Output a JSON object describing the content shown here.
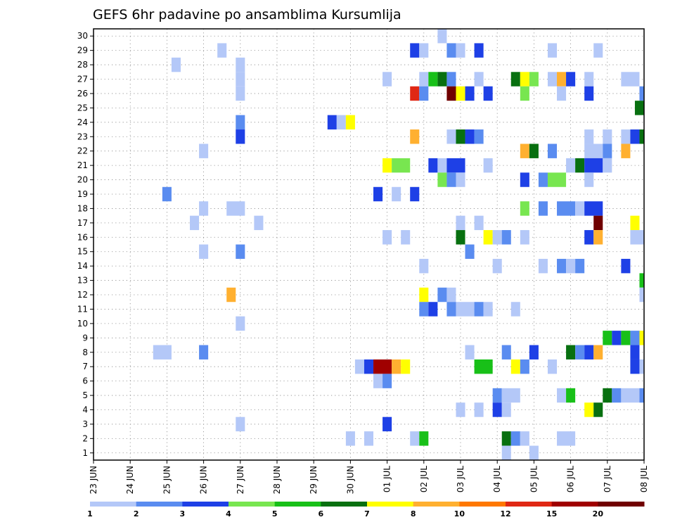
{
  "chart_data": {
    "type": "heatmap",
    "title": "GEFS 6hr padavine po ansamblima Kursumlija",
    "xlabel": "",
    "ylabel": "",
    "x_tick_labels": [
      "23 JUN",
      "24 JUN",
      "25 JUN",
      "26 JUN",
      "27 JUN",
      "28 JUN",
      "29 JUN",
      "30 JUN",
      "01 JUL",
      "02 JUL",
      "03 JUL",
      "04 JUL",
      "05 JUL",
      "06 JUL",
      "07 JUL",
      "08 JUL"
    ],
    "x_unit": "6-hour step from 23 JUN 00Z",
    "xlim": [
      0,
      60
    ],
    "y_tick_labels": [
      "1",
      "2",
      "3",
      "4",
      "5",
      "6",
      "7",
      "8",
      "9",
      "10",
      "11",
      "12",
      "13",
      "14",
      "15",
      "16",
      "17",
      "18",
      "19",
      "20",
      "21",
      "22",
      "23",
      "24",
      "25",
      "26",
      "27",
      "28",
      "29",
      "30"
    ],
    "ylim": [
      0.5,
      30.5
    ],
    "grid": true,
    "legend": {
      "position": "bottom",
      "boundaries": [
        "1",
        "2",
        "3",
        "4",
        "5",
        "6",
        "7",
        "8",
        "10",
        "12",
        "15",
        "20"
      ],
      "colors": [
        "#b4c8f8",
        "#5a8cf0",
        "#1e40e6",
        "#78e650",
        "#18c018",
        "#087010",
        "#ffff00",
        "#ffb030",
        "#ff7800",
        "#e02814",
        "#a00000",
        "#700000"
      ]
    },
    "cells_format": "[member, step_start, step_end, class]; step index counts 6-hour intervals from 23 JUN 00Z; class is the legend color index (0 = 1-2 mm ... 11 = >20 mm)",
    "cells": [
      [
        30,
        37.5,
        38.5,
        0
      ],
      [
        29,
        13.5,
        14.5,
        0
      ],
      [
        29,
        34.5,
        35.5,
        2
      ],
      [
        29,
        35.5,
        36.5,
        0
      ],
      [
        29,
        38.5,
        39.5,
        1
      ],
      [
        29,
        39.5,
        40.5,
        0
      ],
      [
        29,
        41.5,
        42.5,
        2
      ],
      [
        29,
        49.5,
        50.5,
        0
      ],
      [
        29,
        54.5,
        55.5,
        0
      ],
      [
        28,
        8.5,
        9.5,
        0
      ],
      [
        28,
        15.5,
        16.5,
        0
      ],
      [
        27,
        15.5,
        16.5,
        0
      ],
      [
        27,
        31.5,
        32.5,
        0
      ],
      [
        27,
        35.5,
        36.5,
        0
      ],
      [
        27,
        36.5,
        37.5,
        4
      ],
      [
        27,
        37.5,
        38.5,
        5
      ],
      [
        27,
        38.5,
        39.5,
        1
      ],
      [
        27,
        41.5,
        42.5,
        0
      ],
      [
        27,
        45.5,
        46.5,
        5
      ],
      [
        27,
        46.5,
        47.5,
        6
      ],
      [
        27,
        47.5,
        48.5,
        3
      ],
      [
        27,
        49.5,
        50.5,
        0
      ],
      [
        27,
        50.5,
        51.5,
        7
      ],
      [
        27,
        51.5,
        52.5,
        2
      ],
      [
        27,
        53.5,
        54.5,
        0
      ],
      [
        27,
        57.5,
        59.5,
        0
      ],
      [
        26,
        15.5,
        16.5,
        0
      ],
      [
        26,
        34.5,
        35.5,
        9
      ],
      [
        26,
        35.5,
        36.5,
        1
      ],
      [
        26,
        38.5,
        39.5,
        11
      ],
      [
        26,
        39.5,
        40.5,
        6
      ],
      [
        26,
        40.5,
        41.5,
        2
      ],
      [
        26,
        42.5,
        43.5,
        2
      ],
      [
        26,
        46.5,
        47.5,
        3
      ],
      [
        26,
        50.5,
        51.5,
        0
      ],
      [
        26,
        53.5,
        54.5,
        2
      ],
      [
        26,
        59.5,
        60,
        1
      ],
      [
        25,
        59,
        60,
        5
      ],
      [
        24,
        15.5,
        16.5,
        1
      ],
      [
        24,
        25.5,
        26.5,
        2
      ],
      [
        24,
        26.5,
        27.5,
        0
      ],
      [
        24,
        27.5,
        28.5,
        6
      ],
      [
        23,
        15.5,
        16.5,
        2
      ],
      [
        23,
        34.5,
        35.5,
        7
      ],
      [
        23,
        38.5,
        39.5,
        0
      ],
      [
        23,
        39.5,
        40.5,
        5
      ],
      [
        23,
        40.5,
        41.5,
        2
      ],
      [
        23,
        41.5,
        42.5,
        1
      ],
      [
        23,
        53.5,
        54.5,
        0
      ],
      [
        23,
        55.5,
        56.5,
        0
      ],
      [
        23,
        57.5,
        58.5,
        0
      ],
      [
        23,
        58.5,
        59.5,
        2
      ],
      [
        23,
        59.5,
        60,
        5
      ],
      [
        22,
        11.5,
        12.5,
        0
      ],
      [
        22,
        46.5,
        47.5,
        7
      ],
      [
        22,
        47.5,
        48.5,
        5
      ],
      [
        22,
        49.5,
        50.5,
        1
      ],
      [
        22,
        53.5,
        55.5,
        0
      ],
      [
        22,
        55.5,
        56.5,
        1
      ],
      [
        22,
        57.5,
        58.5,
        7
      ],
      [
        21,
        31.5,
        32.5,
        6
      ],
      [
        21,
        32.5,
        34.5,
        3
      ],
      [
        21,
        36.5,
        37.5,
        2
      ],
      [
        21,
        37.5,
        38.5,
        0
      ],
      [
        21,
        38.5,
        40.5,
        2
      ],
      [
        21,
        42.5,
        43.5,
        0
      ],
      [
        21,
        51.5,
        52.5,
        0
      ],
      [
        21,
        52.5,
        53.5,
        5
      ],
      [
        21,
        53.5,
        55.5,
        2
      ],
      [
        21,
        55.5,
        56.5,
        0
      ],
      [
        20,
        37.5,
        38.5,
        3
      ],
      [
        20,
        38.5,
        39.5,
        1
      ],
      [
        20,
        39.5,
        40.5,
        0
      ],
      [
        20,
        46.5,
        47.5,
        2
      ],
      [
        20,
        48.5,
        49.5,
        1
      ],
      [
        20,
        49.5,
        51.5,
        3
      ],
      [
        20,
        53.5,
        54.5,
        0
      ],
      [
        19,
        7.5,
        8.5,
        1
      ],
      [
        19,
        30.5,
        31.5,
        2
      ],
      [
        19,
        32.5,
        33.5,
        0
      ],
      [
        19,
        34.5,
        35.5,
        2
      ],
      [
        18,
        11.5,
        12.5,
        0
      ],
      [
        18,
        14.5,
        16.5,
        0
      ],
      [
        18,
        46.5,
        47.5,
        3
      ],
      [
        18,
        48.5,
        49.5,
        1
      ],
      [
        18,
        50.5,
        52.5,
        1
      ],
      [
        18,
        52.5,
        53.5,
        0
      ],
      [
        18,
        53.5,
        55.5,
        2
      ],
      [
        17,
        10.5,
        11.5,
        0
      ],
      [
        17,
        17.5,
        18.5,
        0
      ],
      [
        17,
        39.5,
        40.5,
        0
      ],
      [
        17,
        41.5,
        42.5,
        0
      ],
      [
        17,
        54.5,
        55.5,
        11
      ],
      [
        17,
        58.5,
        59.5,
        6
      ],
      [
        16,
        31.5,
        32.5,
        0
      ],
      [
        16,
        33.5,
        34.5,
        0
      ],
      [
        16,
        39.5,
        40.5,
        5
      ],
      [
        16,
        42.5,
        43.5,
        6
      ],
      [
        16,
        43.5,
        44.5,
        0
      ],
      [
        16,
        44.5,
        45.5,
        1
      ],
      [
        16,
        46.5,
        47.5,
        0
      ],
      [
        16,
        53.5,
        54.5,
        2
      ],
      [
        16,
        54.5,
        55.5,
        7
      ],
      [
        16,
        58.5,
        60,
        0
      ],
      [
        15,
        11.5,
        12.5,
        0
      ],
      [
        15,
        15.5,
        16.5,
        1
      ],
      [
        15,
        40.5,
        41.5,
        1
      ],
      [
        14,
        35.5,
        36.5,
        0
      ],
      [
        14,
        43.5,
        44.5,
        0
      ],
      [
        14,
        48.5,
        49.5,
        0
      ],
      [
        14,
        50.5,
        51.5,
        1
      ],
      [
        14,
        51.5,
        52.5,
        0
      ],
      [
        14,
        52.5,
        53.5,
        1
      ],
      [
        14,
        57.5,
        58.5,
        2
      ],
      [
        13,
        59.5,
        60,
        4
      ],
      [
        12,
        35.5,
        36.5,
        6
      ],
      [
        12,
        37.5,
        38.5,
        1
      ],
      [
        12,
        38.5,
        39.5,
        0
      ],
      [
        12,
        14.5,
        15.5,
        7
      ],
      [
        12,
        59.5,
        60,
        0
      ],
      [
        11,
        35.5,
        36.5,
        1
      ],
      [
        11,
        36.5,
        37.5,
        2
      ],
      [
        11,
        38.5,
        39.5,
        1
      ],
      [
        11,
        39.5,
        41.5,
        0
      ],
      [
        11,
        41.5,
        42.5,
        1
      ],
      [
        11,
        42.5,
        43.5,
        0
      ],
      [
        11,
        45.5,
        46.5,
        0
      ],
      [
        10,
        15.5,
        16.5,
        0
      ],
      [
        9,
        55.5,
        56.5,
        4
      ],
      [
        9,
        56.5,
        57.5,
        2
      ],
      [
        9,
        57.5,
        58.5,
        4
      ],
      [
        9,
        58.5,
        59.5,
        1
      ],
      [
        9,
        59.5,
        60,
        6
      ],
      [
        8,
        6.5,
        8.5,
        0
      ],
      [
        8,
        11.5,
        12.5,
        1
      ],
      [
        8,
        40.5,
        41.5,
        0
      ],
      [
        8,
        44.5,
        45.5,
        1
      ],
      [
        8,
        47.5,
        48.5,
        2
      ],
      [
        8,
        51.5,
        52.5,
        5
      ],
      [
        8,
        52.5,
        53.5,
        1
      ],
      [
        8,
        53.5,
        54.5,
        2
      ],
      [
        8,
        54.5,
        55.5,
        7
      ],
      [
        8,
        58.5,
        59.5,
        2
      ],
      [
        7,
        28.5,
        29.5,
        0
      ],
      [
        7,
        29.5,
        30.5,
        2
      ],
      [
        7,
        30.5,
        32.5,
        10
      ],
      [
        7,
        32.5,
        33.5,
        7
      ],
      [
        7,
        33.5,
        34.5,
        6
      ],
      [
        7,
        41.5,
        43.5,
        4
      ],
      [
        7,
        45.5,
        46.5,
        6
      ],
      [
        7,
        46.5,
        47.5,
        1
      ],
      [
        7,
        49.5,
        50.5,
        0
      ],
      [
        7,
        58.5,
        59.5,
        2
      ],
      [
        7,
        59.5,
        60,
        0
      ],
      [
        6,
        30.5,
        31.5,
        0
      ],
      [
        6,
        31.5,
        32.5,
        1
      ],
      [
        5,
        43.5,
        44.5,
        1
      ],
      [
        5,
        44.5,
        46.5,
        0
      ],
      [
        5,
        50.5,
        51.5,
        0
      ],
      [
        5,
        51.5,
        52.5,
        4
      ],
      [
        5,
        55.5,
        56.5,
        5
      ],
      [
        5,
        56.5,
        57.5,
        1
      ],
      [
        5,
        57.5,
        59.5,
        0
      ],
      [
        5,
        59.5,
        60,
        1
      ],
      [
        4,
        39.5,
        40.5,
        0
      ],
      [
        4,
        41.5,
        42.5,
        0
      ],
      [
        4,
        43.5,
        44.5,
        2
      ],
      [
        4,
        44.5,
        45.5,
        0
      ],
      [
        4,
        53.5,
        54.5,
        6
      ],
      [
        4,
        54.5,
        55.5,
        5
      ],
      [
        3,
        15.5,
        16.5,
        0
      ],
      [
        3,
        31.5,
        32.5,
        2
      ],
      [
        2,
        27.5,
        28.5,
        0
      ],
      [
        2,
        29.5,
        30.5,
        0
      ],
      [
        2,
        34.5,
        35.5,
        0
      ],
      [
        2,
        35.5,
        36.5,
        4
      ],
      [
        2,
        44.5,
        45.5,
        5
      ],
      [
        2,
        45.5,
        46.5,
        1
      ],
      [
        2,
        46.5,
        47.5,
        0
      ],
      [
        2,
        50.5,
        52.5,
        0
      ],
      [
        1,
        44.5,
        45.5,
        0
      ],
      [
        1,
        47.5,
        48.5,
        0
      ]
    ]
  }
}
